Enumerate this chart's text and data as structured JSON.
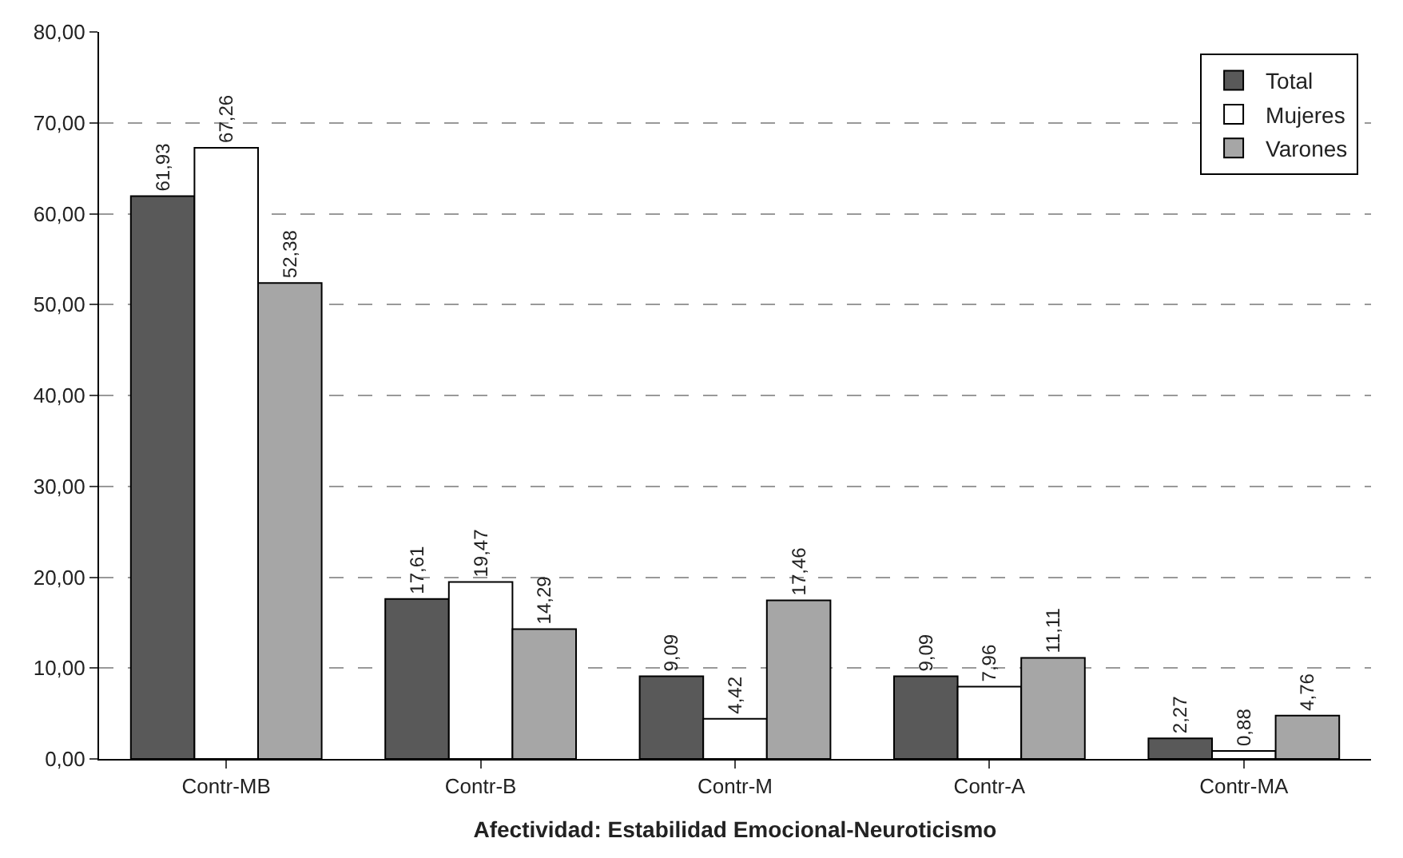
{
  "chart_data": {
    "type": "bar",
    "xlabel": "Afectividad: Estabilidad Emocional-Neuroticismo",
    "categories": [
      "Contr-MB",
      "Contr-B",
      "Contr-M",
      "Contr-A",
      "Contr-MA"
    ],
    "series": [
      {
        "name": "Total",
        "color": "#595959",
        "values": [
          61.93,
          17.61,
          9.09,
          9.09,
          2.27
        ],
        "value_labels": [
          "61,93",
          "17,61",
          "9,09",
          "9,09",
          "2,27"
        ]
      },
      {
        "name": "Mujeres",
        "color": "#ffffff",
        "values": [
          67.26,
          19.47,
          4.42,
          7.96,
          0.88
        ],
        "value_labels": [
          "67,26",
          "19,47",
          "4,42",
          "7,96",
          "0,88"
        ]
      },
      {
        "name": "Varones",
        "color": "#a6a6a6",
        "values": [
          52.38,
          14.29,
          17.46,
          11.11,
          4.76
        ],
        "value_labels": [
          "52,38",
          "14,29",
          "17,46",
          "11,11",
          "4,76"
        ]
      }
    ],
    "ylim": [
      0,
      80
    ],
    "yticks": [
      {
        "value": 0,
        "label": "0,00"
      },
      {
        "value": 10,
        "label": "10,00"
      },
      {
        "value": 20,
        "label": "20,00"
      },
      {
        "value": 30,
        "label": "30,00"
      },
      {
        "value": 40,
        "label": "40,00"
      },
      {
        "value": 50,
        "label": "50,00"
      },
      {
        "value": 60,
        "label": "60,00"
      },
      {
        "value": 70,
        "label": "70,00"
      },
      {
        "value": 80,
        "label": "80,00"
      }
    ],
    "grid": "y",
    "legend": "top right"
  }
}
